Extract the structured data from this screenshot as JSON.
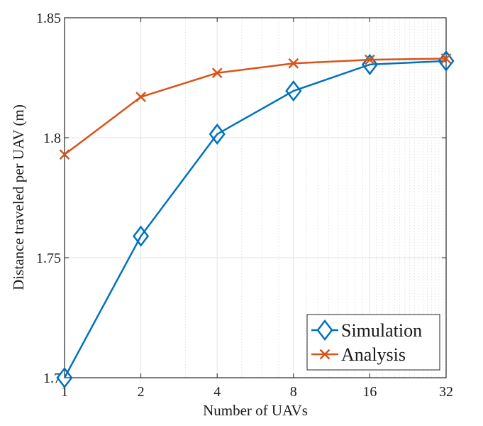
{
  "chart_data": {
    "type": "line",
    "title": "",
    "xlabel": "Number of UAVs",
    "ylabel": "Distance traveled per UAV (m)",
    "x_scale": "log2",
    "x": [
      1,
      2,
      4,
      8,
      16,
      32
    ],
    "xticks": [
      {
        "value": 1,
        "label": "1"
      },
      {
        "value": 2,
        "label": "2"
      },
      {
        "value": 4,
        "label": "4"
      },
      {
        "value": 8,
        "label": "8"
      },
      {
        "value": 16,
        "label": "16"
      },
      {
        "value": 32,
        "label": "32"
      }
    ],
    "ylim": [
      1.7,
      1.85
    ],
    "yticks": [
      {
        "value": 1.7,
        "label": "1.7"
      },
      {
        "value": 1.75,
        "label": "1.75"
      },
      {
        "value": 1.8,
        "label": "1.8"
      },
      {
        "value": 1.85,
        "label": "1.85"
      }
    ],
    "grid": true,
    "legend_position": "bottom-right",
    "series": [
      {
        "name": "Simulation",
        "marker": "diamond",
        "color": "#0072BD",
        "values": [
          1.7,
          1.759,
          1.8015,
          1.8195,
          1.8305,
          1.832
        ]
      },
      {
        "name": "Analysis",
        "marker": "x",
        "color": "#D95319",
        "values": [
          1.793,
          1.817,
          1.827,
          1.831,
          1.8325,
          1.833
        ]
      }
    ]
  }
}
